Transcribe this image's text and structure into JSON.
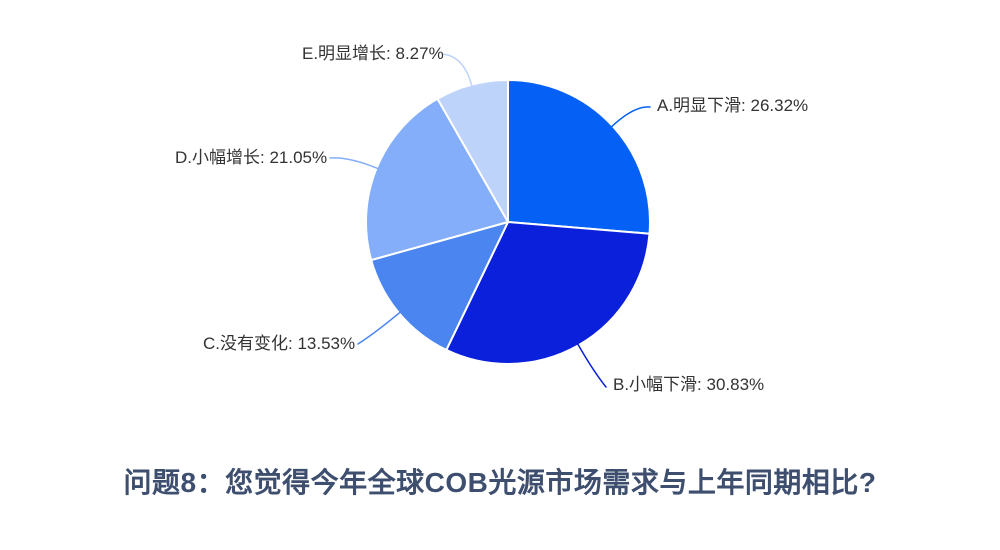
{
  "title": "问题8：您觉得今年全球COB光源市场需求与上年同期相比?",
  "colors": {
    "background": "#FFFFFF",
    "title_text": "#3E4E6E",
    "label_text": "#333333",
    "slice_border": "#FFFFFF"
  },
  "chart_data": {
    "type": "pie",
    "direction": "clockwise",
    "start_angle_deg": 0,
    "legend": "none",
    "title": "问题8：您觉得今年全球COB光源市场需求与上年同期相比?",
    "slices": [
      {
        "option": "A",
        "name": "明显下滑",
        "percent": 26.32,
        "label": "A.明显下滑: 26.32%",
        "color": "#0561F5"
      },
      {
        "option": "B",
        "name": "小幅下滑",
        "percent": 30.83,
        "label": "B.小幅下滑: 30.83%",
        "color": "#0B20DB"
      },
      {
        "option": "C",
        "name": "没有变化",
        "percent": 13.53,
        "label": "C.没有变化: 13.53%",
        "color": "#4A85F0"
      },
      {
        "option": "D",
        "name": "小幅增长",
        "percent": 21.05,
        "label": "D.小幅增长: 21.05%",
        "color": "#84AEFA"
      },
      {
        "option": "E",
        "name": "明显增长",
        "percent": 8.27,
        "label": "E.明显增长: 8.27%",
        "color": "#BED3FA"
      }
    ]
  }
}
